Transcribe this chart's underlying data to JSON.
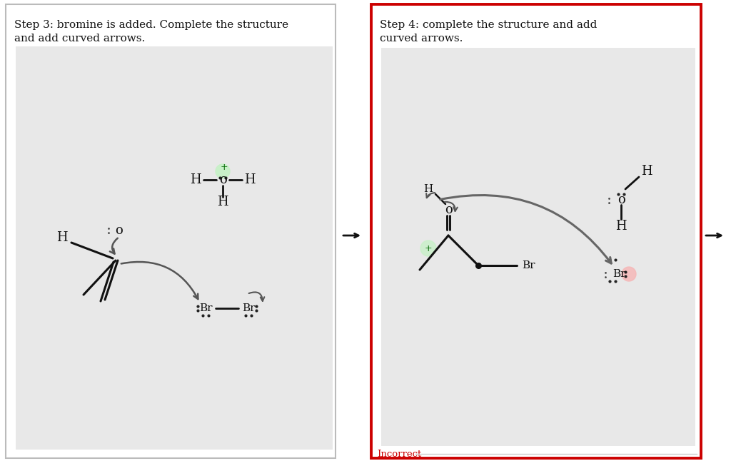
{
  "bg_color": "#ffffff",
  "panel1_title_line1": "Step 3: bromine is added. Complete the structure",
  "panel1_title_line2": "and add curved arrows.",
  "panel2_title_line1": "Step 4: complete the structure and add",
  "panel2_title_line2": "curved arrows.",
  "incorrect_label": "Incorrect",
  "text_color": "#111111",
  "green_highlight": "#c8f0c8",
  "pink_highlight": "#f5b8b8",
  "red_border": "#cc0000",
  "gray_bg": "#e8e8e8",
  "arrow_color": "#555555",
  "dot_color": "#222222",
  "bond_color": "#111111"
}
